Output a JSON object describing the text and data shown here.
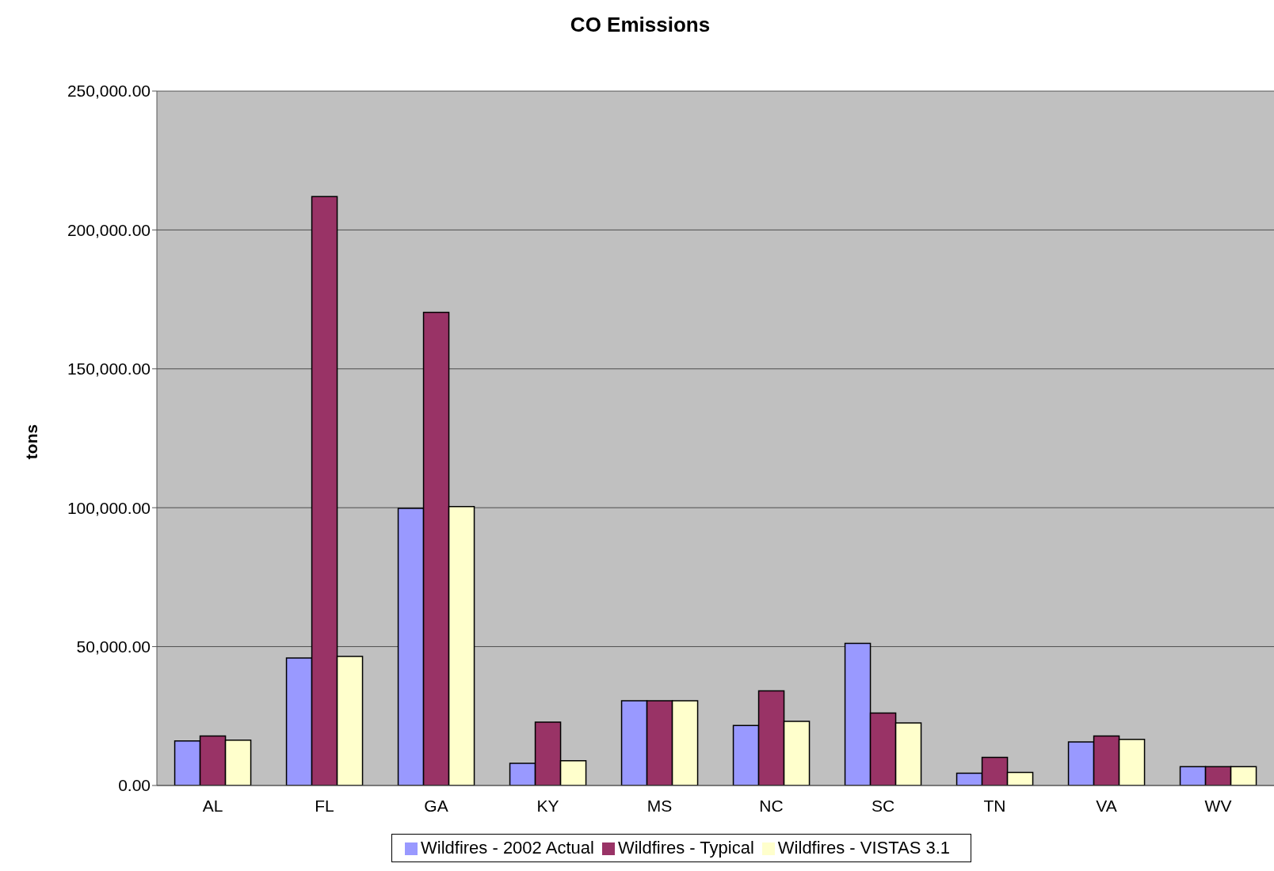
{
  "chart_data": {
    "type": "bar",
    "title": "CO Emissions",
    "ylabel": "tons",
    "categories": [
      "AL",
      "FL",
      "GA",
      "KY",
      "MS",
      "NC",
      "SC",
      "TN",
      "VA",
      "WV"
    ],
    "series": [
      {
        "name": "Wildfires - 2002 Actual",
        "color": "#9999ff",
        "values": [
          16000,
          45900,
          99800,
          8000,
          30500,
          21600,
          51200,
          4400,
          15700,
          6800
        ]
      },
      {
        "name": "Wildfires - Typical",
        "color": "#993366",
        "values": [
          17800,
          212000,
          170300,
          22800,
          30500,
          34100,
          26100,
          10100,
          17800,
          6800
        ]
      },
      {
        "name": "Wildfires - VISTAS 3.1",
        "color": "#ffffcc",
        "values": [
          16300,
          46500,
          100400,
          8900,
          30500,
          23100,
          22500,
          4700,
          16600,
          6800
        ]
      }
    ],
    "ylim": [
      0,
      250000
    ],
    "yticks": [
      {
        "value": 0,
        "label": "0.00"
      },
      {
        "value": 50000,
        "label": "50,000.00"
      },
      {
        "value": 100000,
        "label": "100,000.00"
      },
      {
        "value": 150000,
        "label": "150,000.00"
      },
      {
        "value": 200000,
        "label": "200,000.00"
      },
      {
        "value": 250000,
        "label": "250,000.00"
      }
    ],
    "grid": "y",
    "legend": "bottom"
  }
}
